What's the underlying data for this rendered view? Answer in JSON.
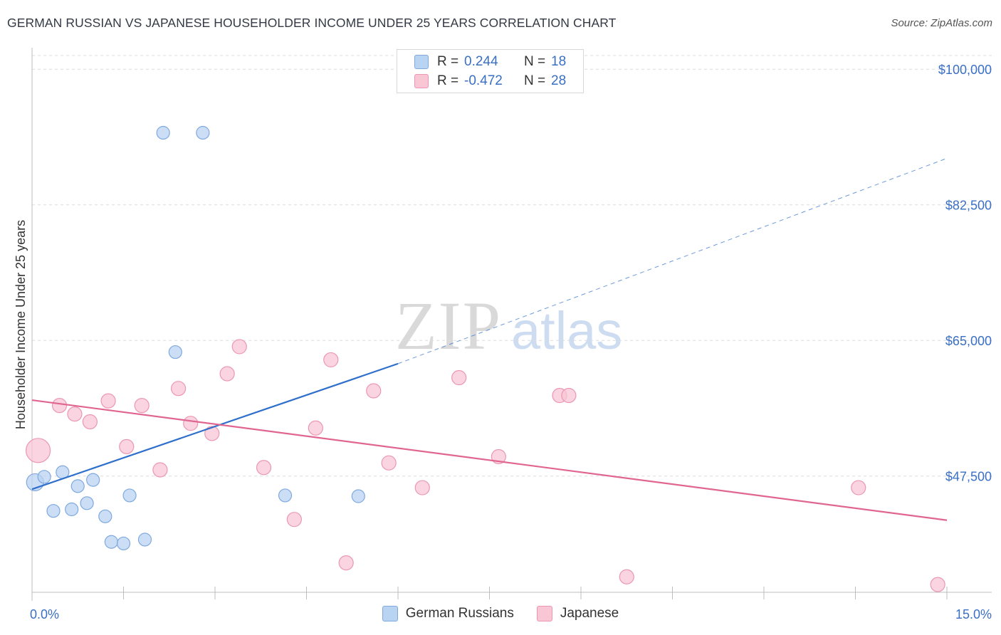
{
  "title": "GERMAN RUSSIAN VS JAPANESE HOUSEHOLDER INCOME UNDER 25 YEARS CORRELATION CHART",
  "source": "Source: ZipAtlas.com",
  "watermark": {
    "zip": "ZIP",
    "atlas": "atlas"
  },
  "legend_top": [
    {
      "r_label": "R =",
      "r_value": "0.244",
      "n_label": "N =",
      "n_value": "18"
    },
    {
      "r_label": "R =",
      "r_value": "-0.472",
      "n_label": "N =",
      "n_value": "28"
    }
  ],
  "colors": {
    "german_fill": "#b9d3f3",
    "german_stroke": "#7fa9de",
    "german_line": "#2f6fcc",
    "japanese_fill": "#f8c6d5",
    "japanese_stroke": "#eb97b2",
    "japanese_line": "#e06591",
    "axis_label": "#3a6fc4",
    "grid": "#dcdcdc"
  },
  "chart_data": {
    "type": "scatter",
    "ylabel": "Householder Income Under 25 years",
    "x_tick_labels": [
      "0.0%",
      "15.0%"
    ],
    "y_tick_labels": [
      "$100,000",
      "$82,500",
      "$65,000",
      "$47,500"
    ],
    "y_ticks": [
      100000,
      82500,
      65000,
      47500
    ],
    "xlim": [
      0,
      15
    ],
    "ylim": [
      32500,
      102500
    ],
    "series": [
      {
        "name": "German Russians",
        "points": [
          [
            0.05,
            46700,
            12
          ],
          [
            0.2,
            47400,
            9
          ],
          [
            0.35,
            43000,
            9
          ],
          [
            0.5,
            48000,
            9
          ],
          [
            0.65,
            43200,
            9
          ],
          [
            0.75,
            46200,
            9
          ],
          [
            0.9,
            44000,
            9
          ],
          [
            1.0,
            47000,
            9
          ],
          [
            1.2,
            42300,
            9
          ],
          [
            1.3,
            39000,
            9
          ],
          [
            1.5,
            38800,
            9
          ],
          [
            1.6,
            45000,
            9
          ],
          [
            1.85,
            39300,
            9
          ],
          [
            2.15,
            91800,
            9
          ],
          [
            2.8,
            91800,
            9
          ],
          [
            2.35,
            63500,
            9
          ],
          [
            4.15,
            45000,
            9
          ],
          [
            5.35,
            44900,
            9
          ]
        ],
        "trend": {
          "x0": 0,
          "y0": 45800,
          "x1": 6.0,
          "y1": 62000,
          "dashed_to_x": 15,
          "dashed_to_y": 88500
        }
      },
      {
        "name": "Japanese",
        "points": [
          [
            0.1,
            50800,
            17
          ],
          [
            0.45,
            56600,
            10
          ],
          [
            0.7,
            55500,
            10
          ],
          [
            0.95,
            54500,
            10
          ],
          [
            1.25,
            57200,
            10
          ],
          [
            1.55,
            51300,
            10
          ],
          [
            1.8,
            56600,
            10
          ],
          [
            2.1,
            48300,
            10
          ],
          [
            2.4,
            58800,
            10
          ],
          [
            2.6,
            54300,
            10
          ],
          [
            2.95,
            53000,
            10
          ],
          [
            3.2,
            60700,
            10
          ],
          [
            3.4,
            64200,
            10
          ],
          [
            3.8,
            48600,
            10
          ],
          [
            4.3,
            41900,
            10
          ],
          [
            4.65,
            53700,
            10
          ],
          [
            4.9,
            62500,
            10
          ],
          [
            5.15,
            36300,
            10
          ],
          [
            5.6,
            58500,
            10
          ],
          [
            5.85,
            49200,
            10
          ],
          [
            6.4,
            46000,
            10
          ],
          [
            7.0,
            60200,
            10
          ],
          [
            7.65,
            50000,
            10
          ],
          [
            8.65,
            57900,
            10
          ],
          [
            8.8,
            57900,
            10
          ],
          [
            9.75,
            34500,
            10
          ],
          [
            13.55,
            46000,
            10
          ],
          [
            14.85,
            33500,
            10
          ]
        ],
        "trend": {
          "x0": 0,
          "y0": 57300,
          "x1": 15,
          "y1": 41800
        }
      }
    ],
    "grid": true,
    "legend": "bottom"
  }
}
